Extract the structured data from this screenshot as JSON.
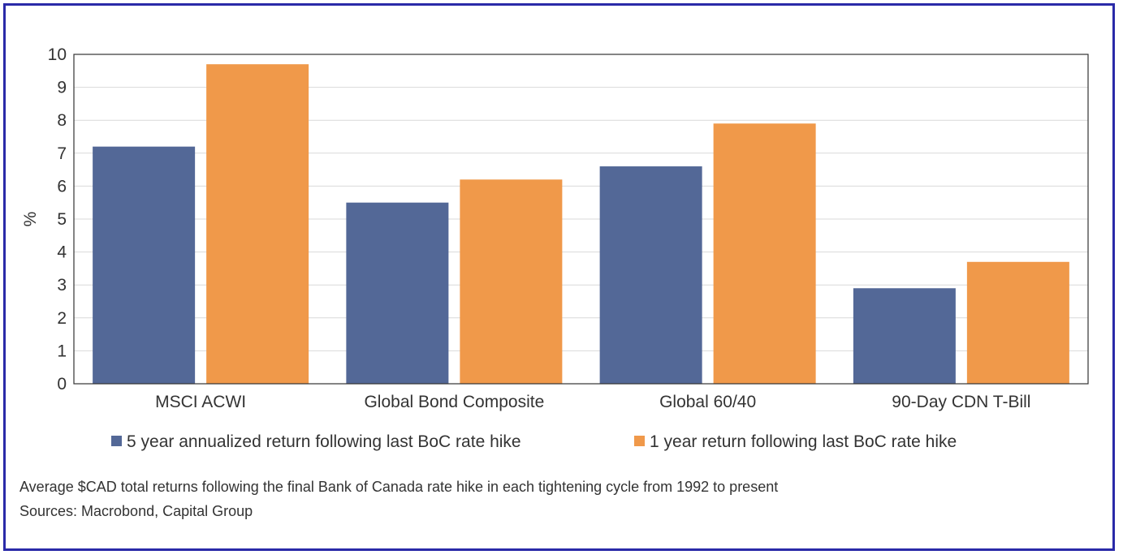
{
  "chart_data": {
    "type": "bar",
    "ylabel": "%",
    "xlabel": "",
    "ylim": [
      0,
      10
    ],
    "yticks": [
      0,
      1,
      2,
      3,
      4,
      5,
      6,
      7,
      8,
      9,
      10
    ],
    "categories": [
      "MSCI ACWI",
      "Global Bond Composite",
      "Global 60/40",
      "90-Day CDN T-Bill"
    ],
    "series": [
      {
        "name": "5 year annualized return following last BoC rate hike",
        "color": "#536897",
        "values": [
          7.2,
          5.5,
          6.6,
          2.9
        ]
      },
      {
        "name": "1 year return following last BoC rate hike",
        "color": "#f0994a",
        "values": [
          9.7,
          6.2,
          7.9,
          3.7
        ]
      }
    ],
    "grid": true,
    "legend": "bottom"
  },
  "footnote": {
    "description": "Average $CAD total returns following the final Bank of Canada rate hike in each tightening cycle from 1992 to present",
    "sources": "Sources: Macrobond, Capital Group"
  },
  "colors": {
    "frame": "#2a2aa8",
    "grid": "#d9d9d9",
    "axis": "#333333"
  }
}
